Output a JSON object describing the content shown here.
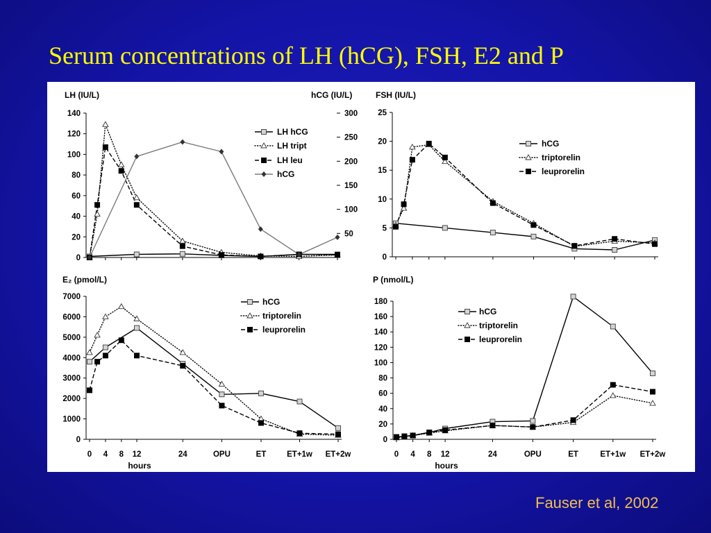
{
  "slide": {
    "title": "Serum concentrations of LH (hCG), FSH, E2 and P",
    "citation": "Fauser et al, 2002",
    "colors": {
      "background": "#1414a8",
      "title": "#ffff00",
      "citation": "#f0c050",
      "panel": "#ffffff"
    }
  },
  "chart_data": [
    {
      "type": "line",
      "ylabel": "LH (IU/L)",
      "y2label": "hCG (IU/L)",
      "x": [
        "0",
        "2",
        "4",
        "8",
        "12",
        "24",
        "OPU",
        "ET",
        "ET+1w",
        "ET+2w"
      ],
      "ylim": [
        0,
        140
      ],
      "yticks": [
        0,
        20,
        40,
        60,
        80,
        100,
        120,
        140
      ],
      "y2lim": [
        0,
        300
      ],
      "y2ticks": [
        50,
        100,
        150,
        200,
        250,
        300
      ],
      "legend": "top-right",
      "grid": false,
      "series": [
        {
          "name": "LH hCG",
          "axis": "left",
          "marker": "open-square",
          "line": "solid",
          "color": "#000000",
          "values": [
            1,
            null,
            null,
            null,
            3,
            3.5,
            2,
            1,
            3,
            3
          ]
        },
        {
          "name": "LH tript",
          "axis": "left",
          "marker": "open-triangle",
          "line": "dotted",
          "color": "#000000",
          "values": [
            0,
            42,
            129,
            90,
            58,
            16,
            5,
            1.5,
            1,
            2.5
          ]
        },
        {
          "name": "LH leu",
          "axis": "left",
          "marker": "filled-square",
          "line": "dashed",
          "color": "#000000",
          "values": [
            0,
            51,
            107,
            84,
            51,
            11,
            2.5,
            1,
            3,
            2.5
          ]
        },
        {
          "name": "hCG",
          "axis": "right",
          "marker": "diamond",
          "line": "solid",
          "color": "#7a7a7a",
          "values": [
            0,
            null,
            null,
            null,
            210,
            240,
            220,
            59,
            6,
            42
          ]
        }
      ]
    },
    {
      "type": "line",
      "ylabel": "FSH (IU/L)",
      "x": [
        "0",
        "2",
        "4",
        "8",
        "12",
        "24",
        "OPU",
        "ET",
        "ET+1w",
        "ET+2w"
      ],
      "ylim": [
        0,
        25
      ],
      "yticks": [
        0,
        5,
        10,
        15,
        20,
        25
      ],
      "legend": "top-right",
      "grid": false,
      "series": [
        {
          "name": "hCG",
          "axis": "left",
          "marker": "open-square",
          "line": "solid",
          "color": "#000000",
          "values": [
            5.8,
            null,
            null,
            null,
            5.0,
            4.2,
            3.5,
            1.4,
            1.2,
            2.9
          ]
        },
        {
          "name": "triptorelin",
          "axis": "left",
          "marker": "open-triangle",
          "line": "dotted",
          "color": "#000000",
          "values": [
            5.5,
            8.4,
            19,
            19.4,
            16.5,
            9.6,
            5.8,
            1.8,
            2.7,
            2.4
          ]
        },
        {
          "name": "leuprorelin",
          "axis": "left",
          "marker": "filled-square",
          "line": "dashed",
          "color": "#000000",
          "values": [
            5.2,
            9.1,
            16.8,
            19.6,
            17.2,
            9.3,
            5.5,
            1.9,
            3.1,
            2.2
          ]
        }
      ]
    },
    {
      "type": "line",
      "ylabel": "E₂ (pmol/L)",
      "xlabel": "hours",
      "x": [
        "0",
        "2",
        "4",
        "8",
        "12",
        "24",
        "OPU",
        "ET",
        "ET+1w",
        "ET+2w"
      ],
      "xticks": [
        "0",
        "4",
        "8",
        "12",
        "24",
        "OPU",
        "ET",
        "ET+1w",
        "ET+2w"
      ],
      "ylim": [
        0,
        7000
      ],
      "yticks": [
        0,
        1000,
        2000,
        3000,
        4000,
        5000,
        6000,
        7000
      ],
      "legend": "top-right",
      "grid": false,
      "series": [
        {
          "name": "hCG",
          "axis": "left",
          "marker": "open-square",
          "line": "solid",
          "color": "#000000",
          "values": [
            3800,
            null,
            4500,
            null,
            5450,
            3700,
            2200,
            2250,
            1850,
            550
          ]
        },
        {
          "name": "triptorelin",
          "axis": "left",
          "marker": "open-triangle",
          "line": "dotted",
          "color": "#000000",
          "values": [
            4250,
            5100,
            6000,
            6500,
            5900,
            4250,
            2700,
            1000,
            250,
            200
          ]
        },
        {
          "name": "leuprorelin",
          "axis": "left",
          "marker": "filled-square",
          "line": "dashed",
          "color": "#000000",
          "values": [
            2400,
            3800,
            4100,
            4850,
            4100,
            3600,
            1650,
            800,
            300,
            250
          ]
        }
      ]
    },
    {
      "type": "line",
      "ylabel": "P (nmol/L)",
      "xlabel": "hours",
      "x": [
        "0",
        "2",
        "4",
        "8",
        "12",
        "24",
        "OPU",
        "ET",
        "ET+1w",
        "ET+2w"
      ],
      "xticks": [
        "0",
        "4",
        "8",
        "12",
        "24",
        "OPU",
        "ET",
        "ET+1w",
        "ET+2w"
      ],
      "ylim": [
        0,
        180
      ],
      "yticks": [
        0,
        20,
        40,
        60,
        80,
        100,
        120,
        140,
        160,
        180
      ],
      "legend": "top-left",
      "grid": false,
      "series": [
        {
          "name": "hCG",
          "axis": "left",
          "marker": "open-square",
          "line": "solid",
          "color": "#000000",
          "values": [
            3,
            null,
            5,
            9,
            14,
            23,
            24,
            186,
            147,
            86
          ]
        },
        {
          "name": "triptorelin",
          "axis": "left",
          "marker": "open-triangle",
          "line": "dotted",
          "color": "#000000",
          "values": [
            2,
            3,
            5,
            8,
            11,
            18,
            16,
            22,
            57,
            47
          ]
        },
        {
          "name": "leuprorelin",
          "axis": "left",
          "marker": "filled-square",
          "line": "dashed",
          "color": "#000000",
          "values": [
            3,
            4,
            5,
            9,
            12,
            18,
            16,
            25,
            71,
            62
          ]
        }
      ]
    }
  ]
}
